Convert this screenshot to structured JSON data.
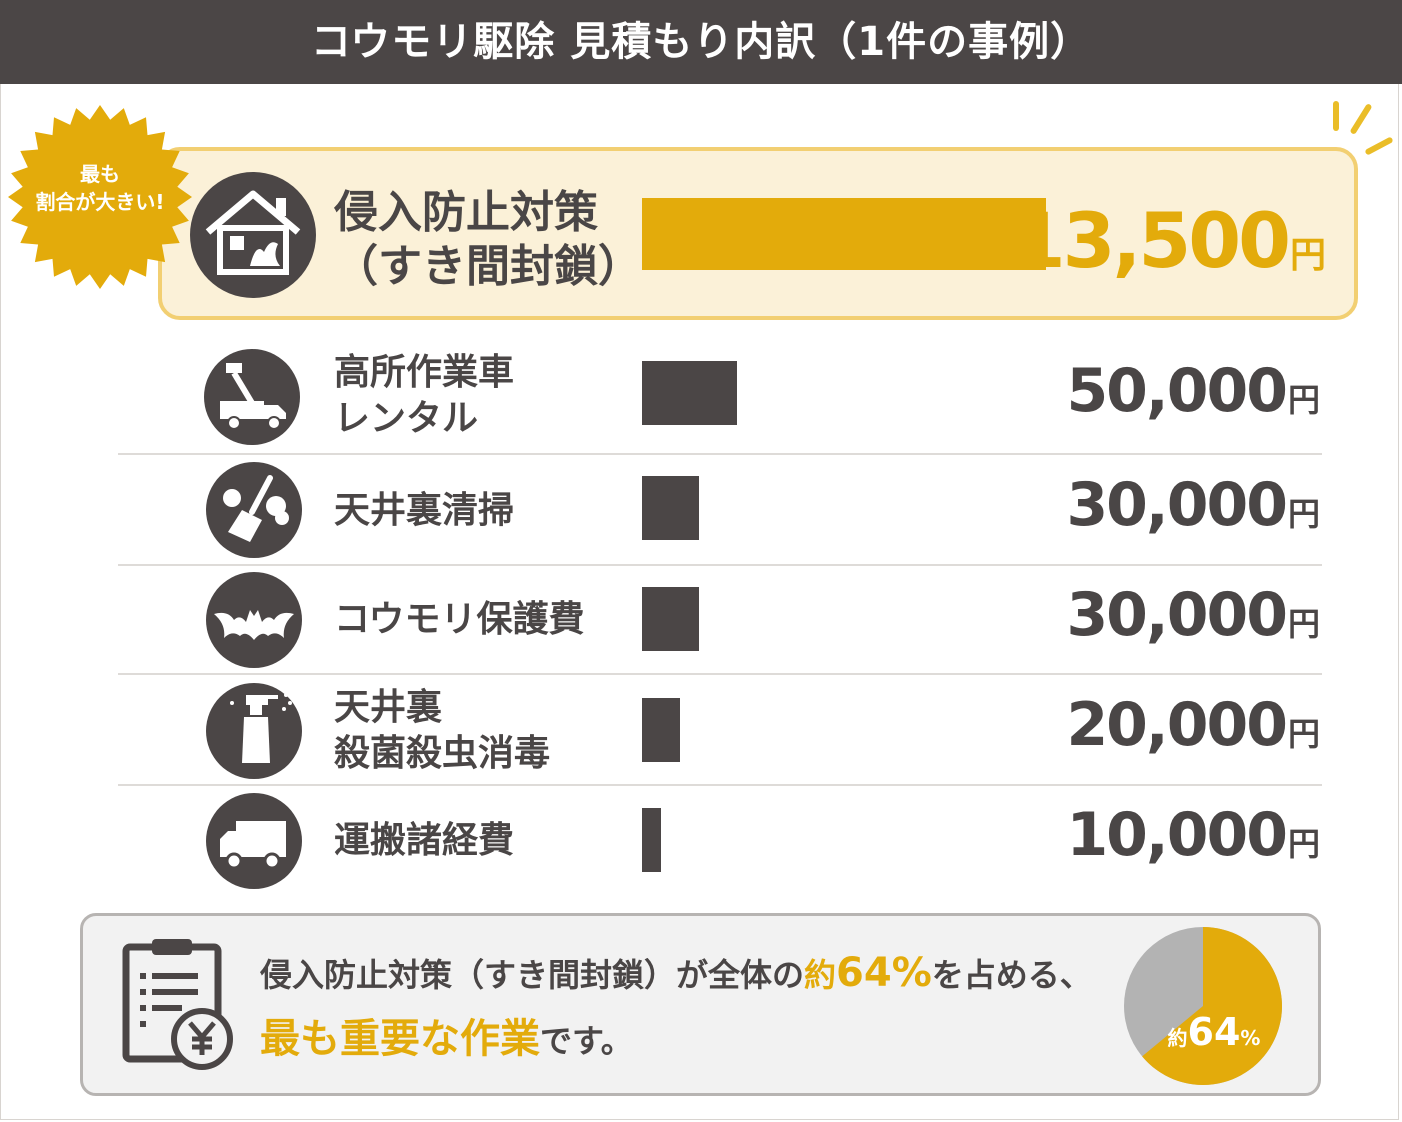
{
  "title": "コウモリ駆除 見積もり内訳（1件の事例）",
  "badge": {
    "line1": "最も",
    "line2": "割合が大きい!"
  },
  "colors": {
    "accent": "#e3ab0b",
    "dark": "#4b4646",
    "highlight_bg": "#fbf1d8",
    "pie_rest": "#b3b3b3"
  },
  "currency_unit": "円",
  "chart_data": {
    "type": "bar",
    "orientation": "horizontal",
    "categories": [
      "侵入防止対策\n（すき間封鎖）",
      "高所作業車\nレンタル",
      "天井裏清掃",
      "コウモリ保護費",
      "天井裏\n殺菌殺虫消毒",
      "運搬諸経費"
    ],
    "values": [
      213500,
      50000,
      30000,
      30000,
      20000,
      10000
    ],
    "value_labels": [
      "213,500",
      "50,000",
      "30,000",
      "30,000",
      "20,000",
      "10,000"
    ],
    "icons": [
      "house-bat-icon",
      "aerial-lift-truck-icon",
      "broom-icon",
      "bat-icon",
      "spray-bottle-icon",
      "delivery-truck-icon"
    ],
    "highlight_index": 0,
    "xlim": [
      0,
      213500
    ]
  },
  "summary": {
    "text_part1": "侵入防止対策（すき間封鎖）が全体の",
    "pct_prefix": "約",
    "pct_value": "64%",
    "text_part2": "を占める、",
    "line2_highlight": "最も重要な作業",
    "line2_rest": "です。",
    "icon": "clipboard-yen-icon",
    "pie": {
      "share": 0.64,
      "label_prefix": "約",
      "label_value": "64",
      "label_unit": "%"
    }
  }
}
